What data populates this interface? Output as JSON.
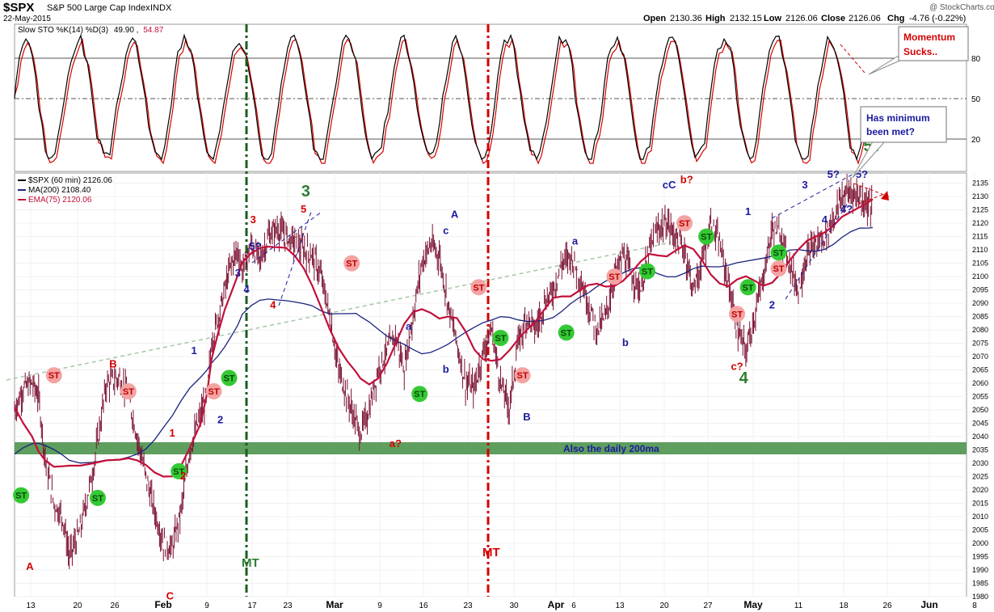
{
  "header": {
    "symbol": "$SPX",
    "name": "S&P 500 Large Cap Index",
    "exchange": "INDX",
    "date": "22-May-2015",
    "watermark": "@ StockCharts.com",
    "quote": {
      "open_label": "Open",
      "open": "2130.36",
      "high_label": "High",
      "high": "2132.15",
      "low_label": "Low",
      "low": "2126.06",
      "close_label": "Close",
      "close": "2126.06",
      "chg_label": "Chg",
      "chg": "-4.76 (-0.22%)"
    }
  },
  "colors": {
    "price_bar": "#7a1030",
    "ma200": "#1a237e",
    "ema75": "#c2103a",
    "green_zone": "#5e9e5e",
    "wave_red": "#d40000",
    "wave_blue": "#1a1aa0",
    "wave_green": "#2e7d32",
    "st_red": "#f4a3a3",
    "st_green": "#34c934"
  },
  "stoch_panel": {
    "legend_prefix": "Slow STO %K(14) %D(3)",
    "k_value": "49.90",
    "d_value": "54.87",
    "levels": [
      "80",
      "50",
      "20"
    ],
    "callout1": "Momentum Sucks..",
    "callout2": "Has minimum been met?"
  },
  "price_panel": {
    "legend": [
      {
        "label": "$SPX (60 min) 2126.06",
        "color": "#000000"
      },
      {
        "label": "MA(200) 2108.40",
        "color": "#1a237e"
      },
      {
        "label": "EMA(75) 2120.06",
        "color": "#c2103a"
      }
    ],
    "zone_label": "Also the daily 200ma",
    "mt_label": "MT"
  },
  "chart_data": [
    {
      "type": "line",
      "title": "Slow STO %K(14) %D(3) 49.90, 54.87",
      "ylim": [
        0,
        100
      ],
      "yticks": [
        20,
        50,
        80
      ],
      "series": [
        {
          "name": "%K",
          "values": [
            49.9
          ]
        },
        {
          "name": "%D",
          "values": [
            54.87
          ]
        }
      ]
    },
    {
      "type": "line",
      "title": "$SPX (60 min) 2126.06",
      "ylim": [
        1980,
        2137
      ],
      "yticks": [
        1980,
        1985,
        1990,
        1995,
        2000,
        2005,
        2010,
        2015,
        2020,
        2025,
        2030,
        2035,
        2040,
        2045,
        2050,
        2055,
        2060,
        2065,
        2070,
        2075,
        2080,
        2085,
        2090,
        2095,
        2100,
        2105,
        2110,
        2115,
        2120,
        2125,
        2130,
        2135
      ],
      "x_tick_labels": [
        "13",
        "20",
        "26",
        "Feb",
        "9",
        "17",
        "23",
        "Mar",
        "9",
        "16",
        "23",
        "30",
        "Apr",
        "6",
        "13",
        "20",
        "27",
        "May",
        "11",
        "18",
        "26",
        "Jun",
        "8"
      ],
      "x_major_labels": [
        "Feb",
        "Mar",
        "Apr",
        "May",
        "Jun"
      ],
      "price_path": [
        [
          0,
          2050
        ],
        [
          4,
          2058
        ],
        [
          8,
          2060
        ],
        [
          11,
          2055
        ],
        [
          14,
          2032
        ],
        [
          18,
          2015
        ],
        [
          22,
          2010
        ],
        [
          25,
          1995
        ],
        [
          30,
          2005
        ],
        [
          36,
          2028
        ],
        [
          42,
          2060
        ],
        [
          48,
          2062
        ],
        [
          52,
          2055
        ],
        [
          56,
          2040
        ],
        [
          60,
          2025
        ],
        [
          64,
          2012
        ],
        [
          68,
          2000
        ],
        [
          72,
          1998
        ],
        [
          76,
          2012
        ],
        [
          80,
          2035
        ],
        [
          85,
          2048
        ],
        [
          88,
          2056
        ],
        [
          90,
          2075
        ],
        [
          93,
          2085
        ],
        [
          96,
          2095
        ],
        [
          99,
          2105
        ],
        [
          102,
          2110
        ],
        [
          104,
          2102
        ],
        [
          108,
          2112
        ],
        [
          112,
          2106
        ],
        [
          116,
          2115
        ],
        [
          120,
          2118
        ],
        [
          124,
          2115
        ],
        [
          128,
          2113
        ],
        [
          132,
          2110
        ],
        [
          136,
          2108
        ],
        [
          140,
          2100
        ],
        [
          144,
          2085
        ],
        [
          148,
          2065
        ],
        [
          152,
          2055
        ],
        [
          156,
          2045
        ],
        [
          158,
          2041
        ],
        [
          162,
          2050
        ],
        [
          166,
          2065
        ],
        [
          170,
          2072
        ],
        [
          174,
          2078
        ],
        [
          178,
          2065
        ],
        [
          182,
          2085
        ],
        [
          186,
          2105
        ],
        [
          190,
          2112
        ],
        [
          194,
          2108
        ],
        [
          198,
          2090
        ],
        [
          202,
          2075
        ],
        [
          206,
          2060
        ],
        [
          210,
          2058
        ],
        [
          214,
          2072
        ],
        [
          218,
          2080
        ],
        [
          222,
          2060
        ],
        [
          226,
          2051
        ],
        [
          230,
          2075
        ],
        [
          234,
          2085
        ],
        [
          238,
          2080
        ],
        [
          242,
          2090
        ],
        [
          246,
          2095
        ],
        [
          250,
          2105
        ],
        [
          254,
          2108
        ],
        [
          258,
          2100
        ],
        [
          262,
          2090
        ],
        [
          266,
          2080
        ],
        [
          270,
          2085
        ],
        [
          274,
          2100
        ],
        [
          278,
          2108
        ],
        [
          282,
          2100
        ],
        [
          286,
          2095
        ],
        [
          290,
          2110
        ],
        [
          294,
          2118
        ],
        [
          298,
          2120
        ],
        [
          302,
          2115
        ],
        [
          306,
          2110
        ],
        [
          310,
          2095
        ],
        [
          314,
          2105
        ],
        [
          318,
          2120
        ],
        [
          322,
          2112
        ],
        [
          326,
          2098
        ],
        [
          330,
          2080
        ],
        [
          334,
          2072
        ],
        [
          338,
          2085
        ],
        [
          342,
          2100
        ],
        [
          346,
          2118
        ],
        [
          350,
          2116
        ],
        [
          354,
          2105
        ],
        [
          358,
          2095
        ],
        [
          362,
          2108
        ],
        [
          366,
          2112
        ],
        [
          370,
          2115
        ],
        [
          374,
          2122
        ],
        [
          378,
          2130
        ],
        [
          382,
          2132
        ],
        [
          386,
          2130
        ],
        [
          390,
          2127
        ],
        [
          392,
          2126
        ]
      ],
      "series": [
        {
          "name": "$SPX (60 min)",
          "values": [
            2126.06
          ]
        },
        {
          "name": "MA(200)",
          "values": [
            2108.4
          ]
        },
        {
          "name": "EMA(75)",
          "values": [
            2120.06
          ]
        }
      ]
    }
  ],
  "annotations": {
    "waves": [
      {
        "text": "A",
        "color": "red",
        "x": 7,
        "y": 1990
      },
      {
        "text": "B",
        "color": "red",
        "x": 45,
        "y": 2066
      },
      {
        "text": "ST",
        "color": "st_red",
        "x": 18,
        "y": 2063
      },
      {
        "text": "ST",
        "color": "st_red",
        "x": 52,
        "y": 2057
      },
      {
        "text": "ST",
        "color": "st_green",
        "x": 3,
        "y": 2018
      },
      {
        "text": "ST",
        "color": "st_green",
        "x": 38,
        "y": 2017
      },
      {
        "text": "C",
        "color": "red",
        "x": 71,
        "y": 1979
      },
      {
        "text": "ST",
        "color": "st_green",
        "x": 75,
        "y": 2027
      },
      {
        "text": "1",
        "color": "red",
        "x": 72,
        "y": 2040
      },
      {
        "text": "2",
        "color": "red",
        "x": 77,
        "y": 2024
      },
      {
        "text": "ST",
        "color": "st_red",
        "x": 91,
        "y": 2057
      },
      {
        "text": "ST",
        "color": "st_green",
        "x": 98,
        "y": 2062
      },
      {
        "text": "1",
        "color": "blue",
        "x": 82,
        "y": 2071
      },
      {
        "text": "2",
        "color": "blue",
        "x": 94,
        "y": 2045
      },
      {
        "text": "3",
        "color": "blue",
        "x": 102,
        "y": 2100
      },
      {
        "text": "4",
        "color": "blue",
        "x": 106,
        "y": 2094
      },
      {
        "text": "5?",
        "color": "blue",
        "x": 110,
        "y": 2110
      },
      {
        "text": "3",
        "color": "red",
        "x": 109,
        "y": 2120
      },
      {
        "text": "4",
        "color": "red",
        "x": 118,
        "y": 2088
      },
      {
        "text": "5",
        "color": "red",
        "x": 132,
        "y": 2124
      },
      {
        "text": "3",
        "color": "green",
        "x": 133,
        "y": 2130
      },
      {
        "text": "ST",
        "color": "st_red",
        "x": 154,
        "y": 2105
      },
      {
        "text": "a",
        "color": "blue",
        "x": 180,
        "y": 2080
      },
      {
        "text": "b",
        "color": "blue",
        "x": 197,
        "y": 2064
      },
      {
        "text": "ST",
        "color": "st_green",
        "x": 185,
        "y": 2056
      },
      {
        "text": "a?",
        "color": "red",
        "x": 174,
        "y": 2036
      },
      {
        "text": "A",
        "color": "blue",
        "x": 201,
        "y": 2122
      },
      {
        "text": "c",
        "color": "blue",
        "x": 197,
        "y": 2116
      },
      {
        "text": "ST",
        "color": "st_red",
        "x": 212,
        "y": 2096
      },
      {
        "text": "ST",
        "color": "st_green",
        "x": 222,
        "y": 2077
      },
      {
        "text": "ST",
        "color": "st_red",
        "x": 232,
        "y": 2063
      },
      {
        "text": "B",
        "color": "blue",
        "x": 234,
        "y": 2046
      },
      {
        "text": "ST",
        "color": "st_green",
        "x": 252,
        "y": 2079
      },
      {
        "text": "a",
        "color": "blue",
        "x": 256,
        "y": 2112
      },
      {
        "text": "ST",
        "color": "st_red",
        "x": 274,
        "y": 2100
      },
      {
        "text": "b",
        "color": "blue",
        "x": 279,
        "y": 2074
      },
      {
        "text": "ST",
        "color": "st_green",
        "x": 289,
        "y": 2102
      },
      {
        "text": "cC",
        "color": "blue",
        "x": 299,
        "y": 2133
      },
      {
        "text": "b?",
        "color": "red",
        "x": 307,
        "y": 2135
      },
      {
        "text": "ST",
        "color": "st_red",
        "x": 306,
        "y": 2120
      },
      {
        "text": "ST",
        "color": "st_green",
        "x": 316,
        "y": 2115
      },
      {
        "text": "1",
        "color": "blue",
        "x": 335,
        "y": 2123
      },
      {
        "text": "ST",
        "color": "st_red",
        "x": 330,
        "y": 2086
      },
      {
        "text": "ST",
        "color": "st_green",
        "x": 335,
        "y": 2096
      },
      {
        "text": "c?",
        "color": "red",
        "x": 330,
        "y": 2065
      },
      {
        "text": "4",
        "color": "green",
        "x": 333,
        "y": 2060
      },
      {
        "text": "ST",
        "color": "st_green",
        "x": 349,
        "y": 2109
      },
      {
        "text": "ST",
        "color": "st_red",
        "x": 349,
        "y": 2103
      },
      {
        "text": "2",
        "color": "blue",
        "x": 346,
        "y": 2088
      },
      {
        "text": "3",
        "color": "blue",
        "x": 361,
        "y": 2133
      },
      {
        "text": "4",
        "color": "blue",
        "x": 370,
        "y": 2120
      },
      {
        "text": "5?",
        "color": "blue",
        "x": 374,
        "y": 2137
      },
      {
        "text": "4?",
        "color": "blue",
        "x": 380,
        "y": 2124
      },
      {
        "text": "5?",
        "color": "blue",
        "x": 387,
        "y": 2137
      },
      {
        "text": "5?",
        "color": "green",
        "x": 392,
        "y": 2147
      }
    ]
  }
}
